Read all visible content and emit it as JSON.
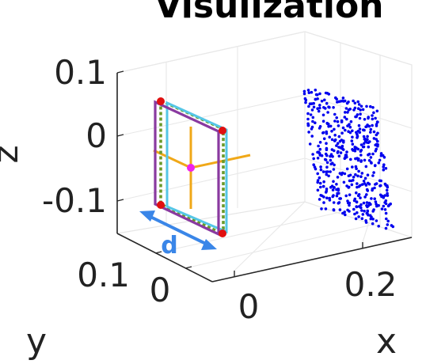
{
  "chart_data": {
    "type": "scatter",
    "title": "Visulization",
    "xlabel": "x",
    "ylabel": "y",
    "zlabel": "z",
    "x_ticks": [
      "0",
      "0.2"
    ],
    "y_ticks": [
      "0.1",
      "0"
    ],
    "z_ticks": [
      "0.1",
      "0",
      "-0.1"
    ],
    "grid": true,
    "annotation": "d",
    "colors": {
      "points": "#0000ee",
      "frame_outer": "#8a3aa0",
      "frame_inner": "#55c6e6",
      "frame_dotted": "#6a9a2a",
      "corners": "#e01010",
      "axes_cross": "#f0a818",
      "center": "#ee22ee",
      "d_arrow": "#3a86e8"
    },
    "point_count": 480,
    "point_cloud": {
      "x_range": [
        0.3,
        0.38
      ],
      "z_range": [
        -0.12,
        0.09
      ]
    }
  }
}
